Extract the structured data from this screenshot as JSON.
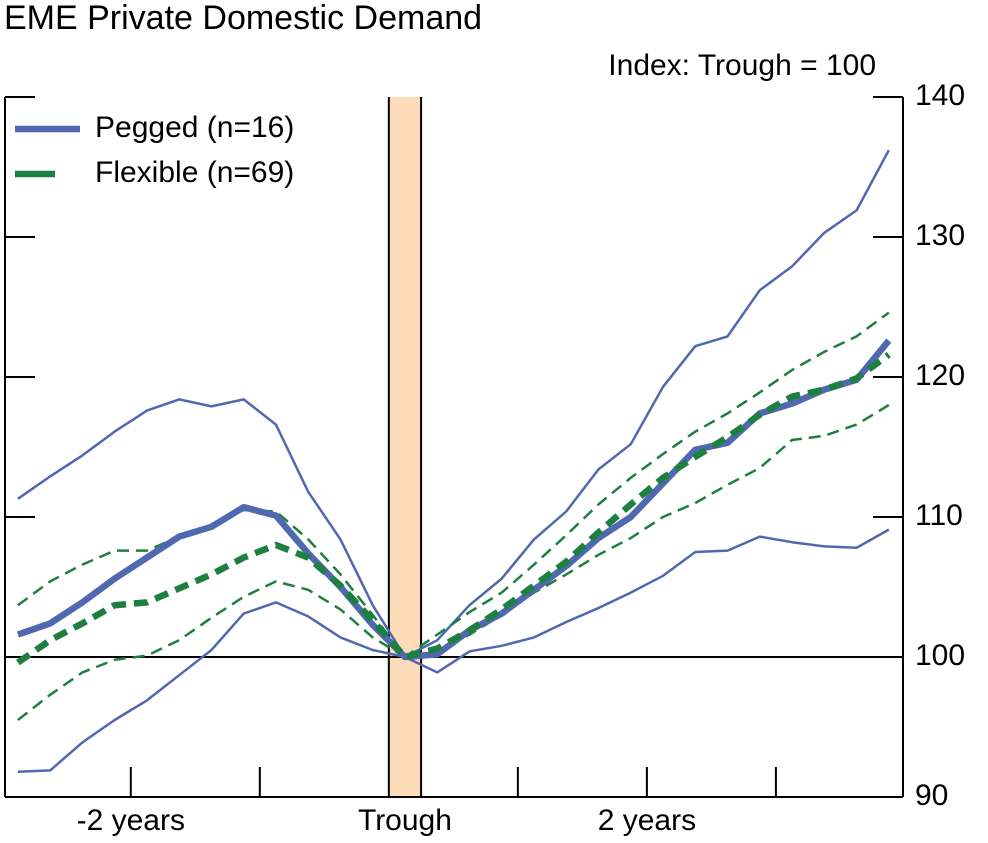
{
  "chart_data": {
    "type": "line",
    "title": "EME Private Domestic Demand",
    "subtitle": "Index: Trough = 100",
    "x": [
      -12,
      -11,
      -10,
      -9,
      -8,
      -7,
      -6,
      -5,
      -4,
      -3,
      -2,
      -1,
      0,
      1,
      2,
      3,
      4,
      5,
      6,
      7,
      8,
      9,
      10,
      11,
      12,
      13,
      14,
      15
    ],
    "xlim": [
      -12.4,
      15.44
    ],
    "xticks": [
      -8.5,
      -4.5,
      3.5,
      7.5,
      11.5
    ],
    "xlabels": [
      {
        "value": -8.5,
        "label": "-2 years"
      },
      {
        "value": 0,
        "label": "Trough"
      },
      {
        "value": 7.5,
        "label": "2 years"
      }
    ],
    "shade": {
      "range": [
        -0.5,
        0.5
      ],
      "color": "#fddcba"
    },
    "reference_line": 100,
    "ylim": [
      90,
      140
    ],
    "yticks": [
      90,
      100,
      110,
      120,
      130,
      140
    ],
    "legend": "upper left",
    "series": [
      {
        "name": "Pegged (n=16)",
        "color": "#5068b0",
        "dashed": false,
        "values": [
          101.6,
          102.4,
          103.9,
          105.6,
          107.1,
          108.6,
          109.3,
          110.7,
          110.1,
          107.4,
          105.0,
          102.3,
          100,
          100.2,
          101.9,
          103.1,
          104.8,
          106.5,
          108.5,
          110.0,
          112.4,
          114.8,
          115.3,
          117.4,
          118.1,
          119.1,
          119.8,
          122.6
        ],
        "band": {
          "upper": [
            111.3,
            112.9,
            114.4,
            116.1,
            117.6,
            118.4,
            117.9,
            118.4,
            116.6,
            111.8,
            108.4,
            103.7,
            100,
            101.2,
            103.7,
            105.6,
            108.4,
            110.4,
            113.4,
            115.2,
            119.3,
            122.2,
            122.9,
            126.2,
            127.9,
            130.3,
            131.9,
            136.2
          ],
          "lower": [
            91.8,
            91.9,
            93.9,
            95.5,
            96.9,
            98.7,
            100.5,
            103.1,
            103.9,
            102.9,
            101.4,
            100.5,
            100,
            98.9,
            100.4,
            100.8,
            101.4,
            102.5,
            103.5,
            104.6,
            105.8,
            107.5,
            107.6,
            108.6,
            108.2,
            107.9,
            107.8,
            109.1
          ]
        }
      },
      {
        "name": "Flexible (n=69)",
        "color": "#1e8040",
        "dashed": true,
        "values": [
          99.6,
          101.2,
          102.4,
          103.7,
          103.9,
          104.9,
          105.9,
          107.1,
          108.0,
          107.1,
          105.1,
          102.6,
          100,
          100.6,
          101.9,
          103.4,
          105.1,
          106.8,
          108.9,
          110.9,
          112.8,
          114.3,
          115.7,
          117.3,
          118.6,
          119.1,
          119.9,
          121.6
        ],
        "band": {
          "upper": [
            103.7,
            105.4,
            106.6,
            107.6,
            107.6,
            108.6,
            109.4,
            110.5,
            110.4,
            108.4,
            105.9,
            103.0,
            100,
            101.6,
            103.2,
            104.6,
            106.6,
            108.7,
            110.9,
            112.8,
            114.5,
            116.1,
            117.4,
            118.9,
            120.5,
            121.8,
            122.9,
            124.6
          ],
          "lower": [
            95.5,
            97.3,
            98.9,
            99.8,
            100.1,
            101.2,
            102.8,
            104.3,
            105.4,
            104.8,
            103.4,
            101.4,
            100,
            100.4,
            101.6,
            103.0,
            104.6,
            105.9,
            107.3,
            108.5,
            110.0,
            111.0,
            112.3,
            113.5,
            115.5,
            115.8,
            116.6,
            118.0
          ]
        }
      }
    ]
  }
}
